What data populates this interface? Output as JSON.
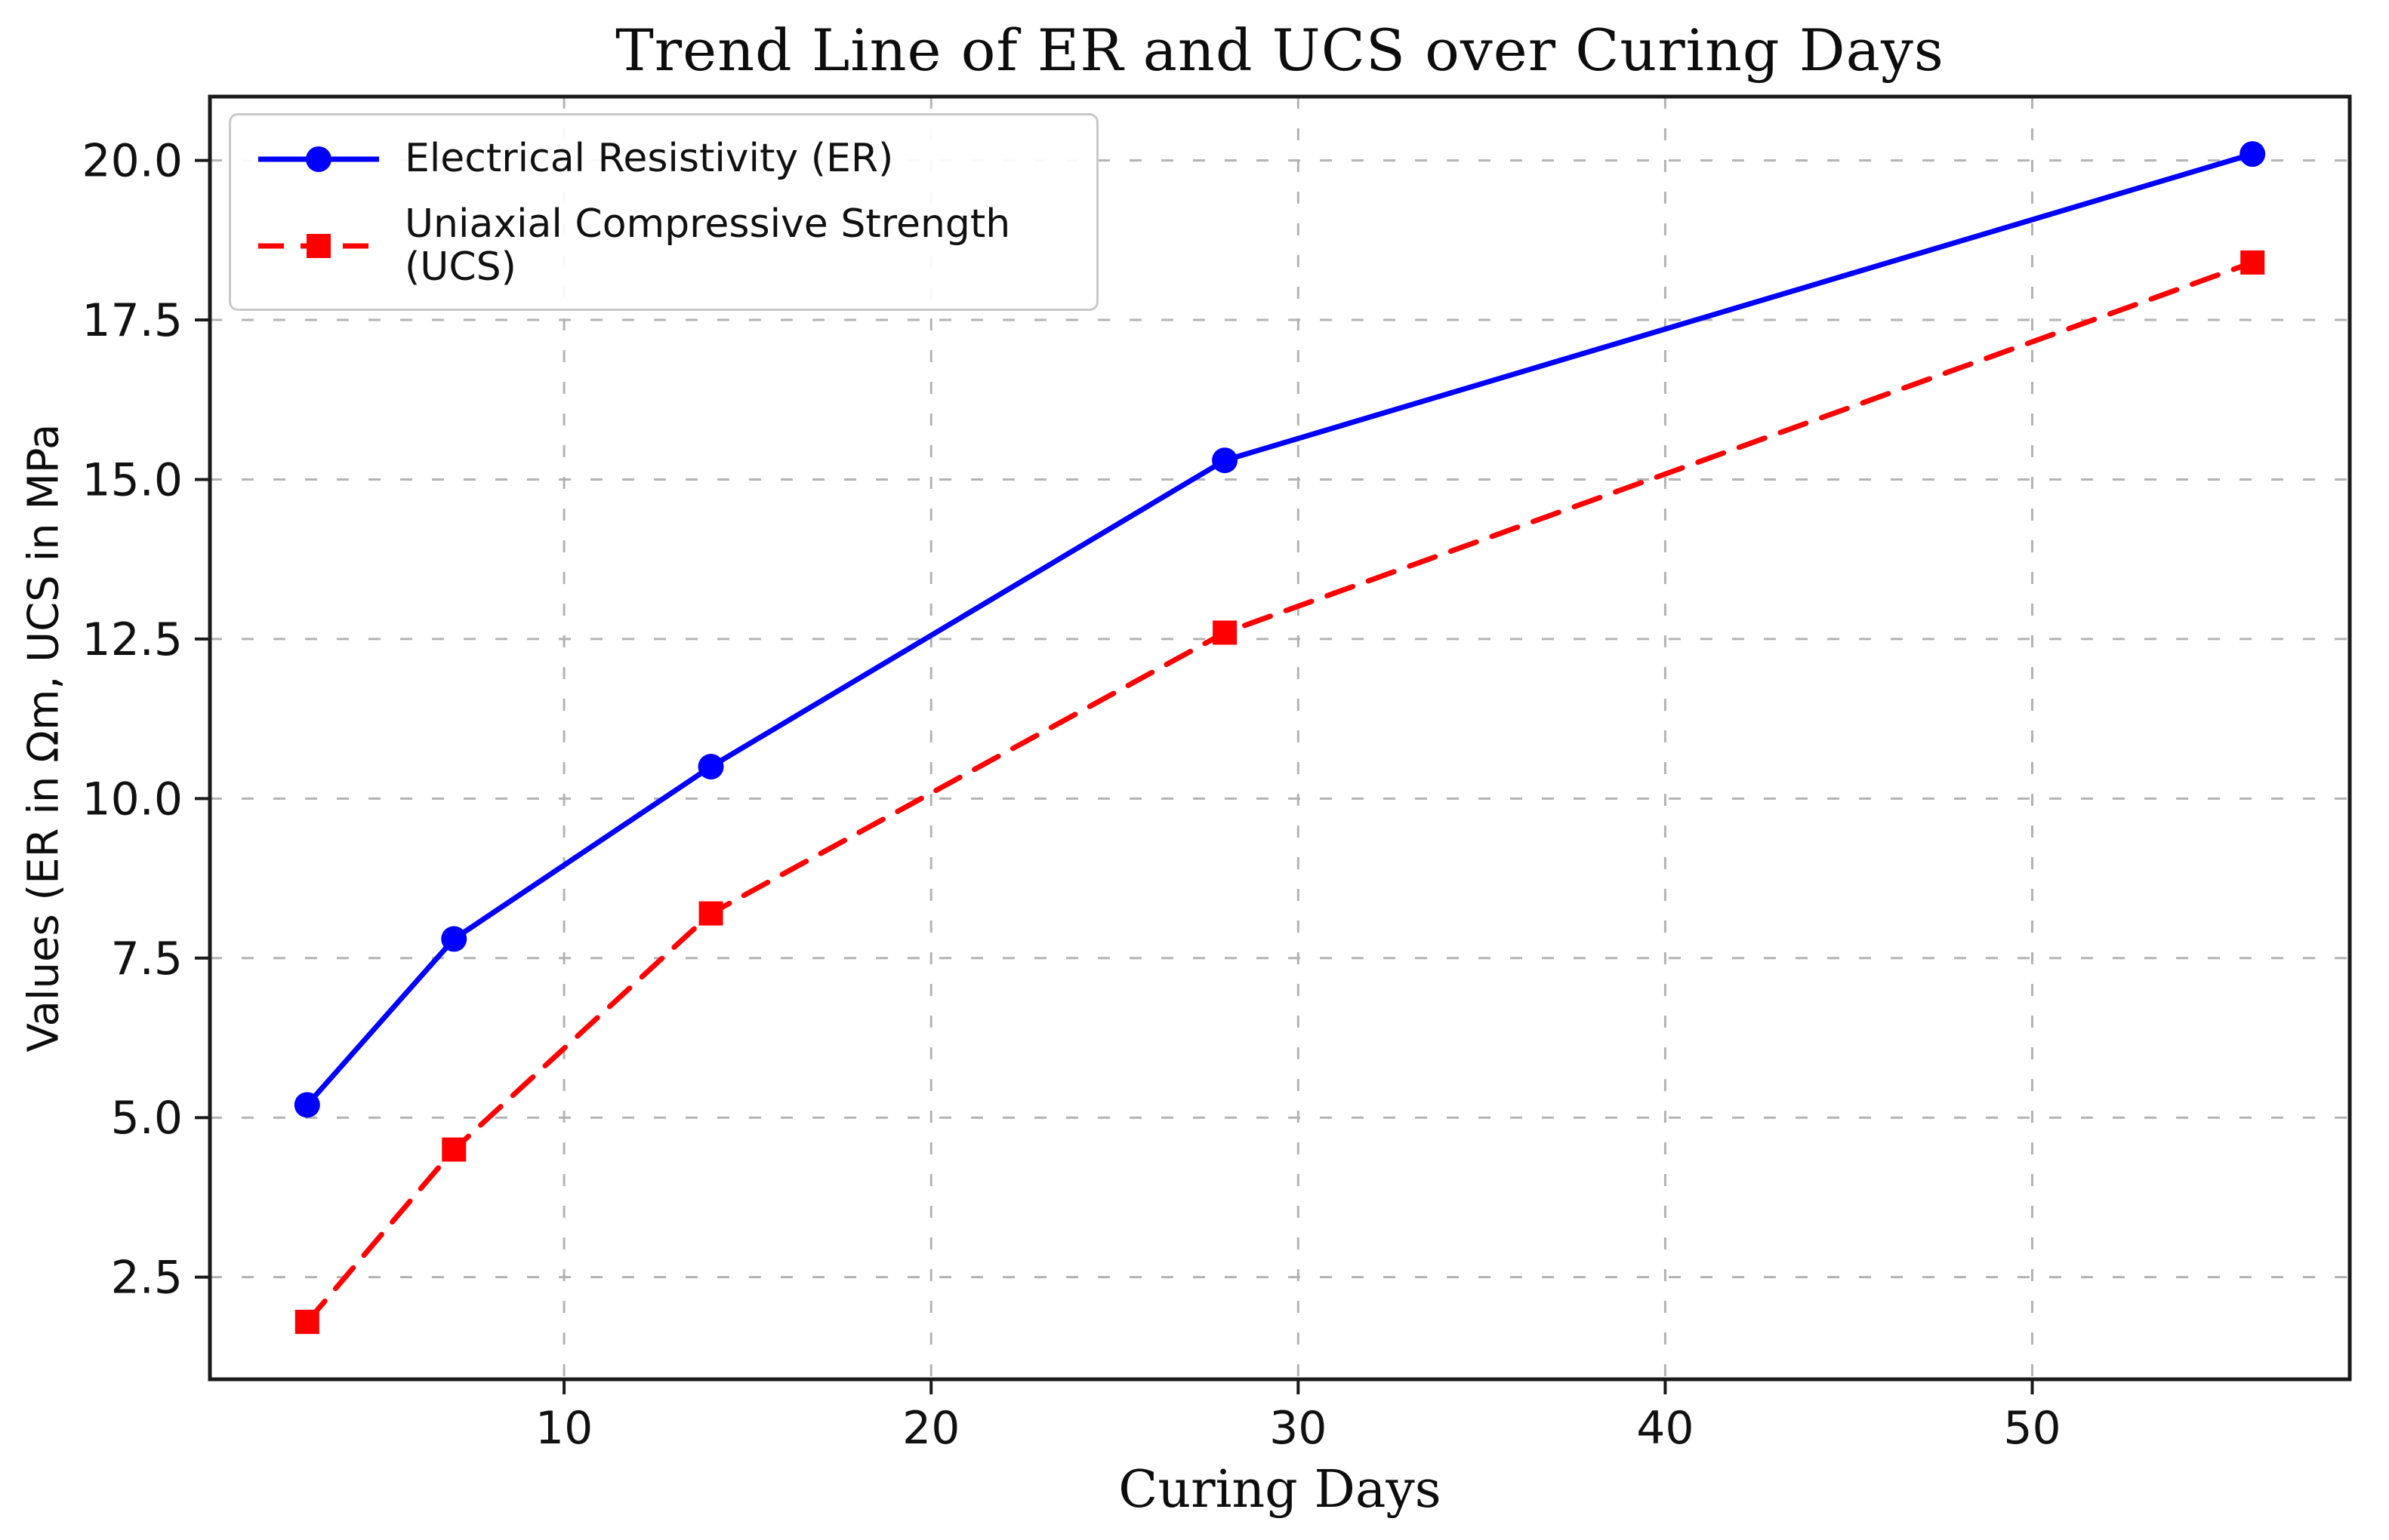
{
  "title": "Trend Line of ER and UCS over Curing Days",
  "axes": {
    "xlabel": "Curing Days",
    "ylabel": "Values (ER in Ωm, UCS in MPa"
  },
  "colors": {
    "er_line": "#0000ff",
    "ucs_line": "#ff0000",
    "grid": "#b3b3b3",
    "spine": "#1a1a1a",
    "tick_text": "#111111"
  },
  "chart_data": {
    "type": "line",
    "title": "Trend Line of ER and UCS over Curing Days",
    "xlabel": "Curing Days",
    "ylabel": "Values (ER in Ωm, UCS in MPa",
    "x": [
      3,
      7,
      14,
      28,
      56
    ],
    "series": [
      {
        "name": "Electrical Resistivity (ER)",
        "values": [
          5.2,
          7.8,
          10.5,
          15.3,
          20.1
        ],
        "color": "#0000ff",
        "line_style": "solid",
        "marker": "circle"
      },
      {
        "name": "Uniaxial Compressive Strength (UCS)",
        "values": [
          1.8,
          4.5,
          8.2,
          12.6,
          18.4
        ],
        "color": "#ff0000",
        "line_style": "dashed",
        "marker": "square"
      }
    ],
    "xticks": [
      10,
      20,
      30,
      40,
      50
    ],
    "yticks": [
      2.5,
      5.0,
      7.5,
      10.0,
      12.5,
      15.0,
      17.5,
      20.0
    ],
    "xlim": [
      0.35,
      58.65
    ],
    "ylim": [
      0.9,
      21.0
    ],
    "grid": true,
    "grid_style": "dashed",
    "legend_position": "upper left"
  }
}
